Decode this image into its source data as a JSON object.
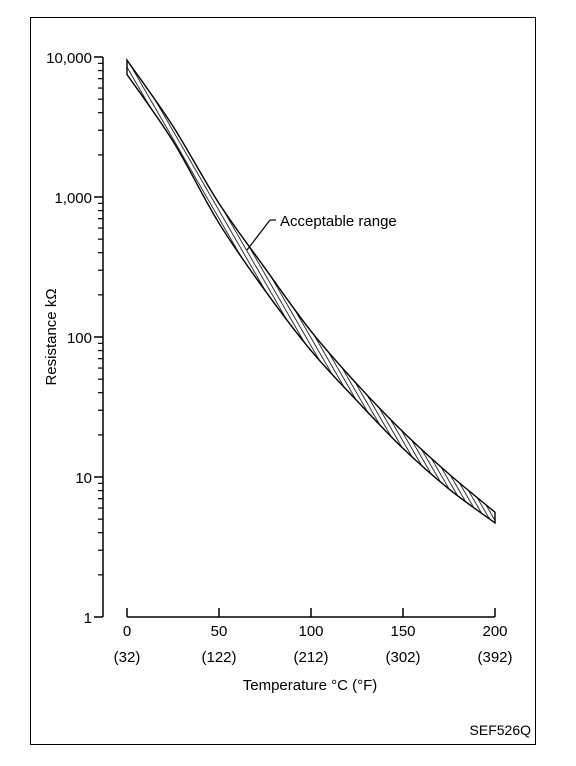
{
  "chart_data": {
    "type": "area",
    "xlabel": "Temperature °C (°F)",
    "ylabel": "Resistance kΩ",
    "x_ticks": [
      0,
      50,
      100,
      150,
      200
    ],
    "x_tick_labels": [
      "0",
      "50",
      "100",
      "150",
      "200"
    ],
    "x_tick_sublabels": [
      "(32)",
      "(122)",
      "(212)",
      "(302)",
      "(392)"
    ],
    "y_scale": "log",
    "y_ticks": [
      1,
      10,
      100,
      1000,
      10000
    ],
    "y_tick_labels": [
      "1",
      "10",
      "100",
      "1,000",
      "10,000"
    ],
    "xlim": [
      0,
      200
    ],
    "ylim": [
      1,
      10000
    ],
    "grid": false,
    "series": [
      {
        "name": "Acceptable range",
        "x": [
          0,
          25,
          50,
          75,
          100,
          125,
          150,
          175,
          200
        ],
        "y_upper": [
          9500,
          3200,
          900,
          310,
          110,
          46,
          21,
          10.5,
          5.6
        ],
        "y_lower": [
          7500,
          2500,
          650,
          215,
          80,
          35,
          16,
          8.2,
          4.7
        ]
      }
    ],
    "annotation": "Acceptable range"
  },
  "figure_code": "SEF526Q"
}
